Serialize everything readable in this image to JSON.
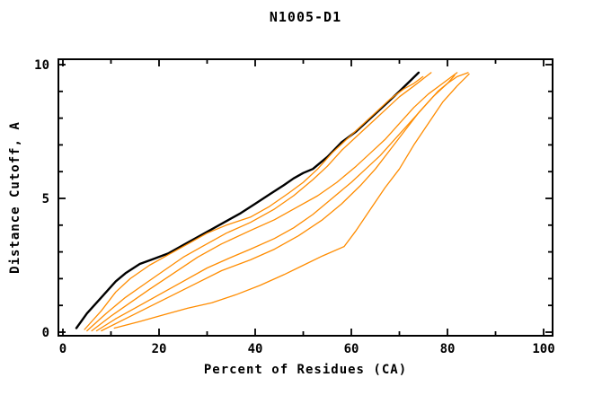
{
  "figure": {
    "background": "#ffffff",
    "frame_color": "#000000",
    "target_color": "#000000",
    "model_color": "#ff8c00"
  },
  "chart_data": {
    "type": "line",
    "title": "N1005-D1",
    "xlabel": "Percent of Residues (CA)",
    "ylabel": "Distance Cutoff, A",
    "xlim": [
      0,
      100
    ],
    "ylim": [
      0,
      10
    ],
    "grid": false,
    "legend": "none",
    "x_major_ticks": [
      0,
      20,
      40,
      60,
      80,
      100
    ],
    "x_minor_ticks": [
      10,
      30,
      50,
      70,
      90
    ],
    "x_tick_labels": [
      "0",
      "20",
      "40",
      "60",
      "80",
      "100"
    ],
    "y_major_ticks": [
      0,
      5,
      10
    ],
    "y_minor_ticks": [
      1,
      2,
      3,
      4,
      6,
      7,
      8,
      9
    ],
    "y_tick_labels": [
      "0",
      "5",
      "10"
    ],
    "series": [
      {
        "name": "target-curve",
        "color": "#000000",
        "width": 2.4,
        "points": [
          [
            2.8,
            0.15
          ],
          [
            5,
            0.7
          ],
          [
            8,
            1.3
          ],
          [
            11,
            1.9
          ],
          [
            13,
            2.2
          ],
          [
            16,
            2.55
          ],
          [
            19,
            2.75
          ],
          [
            22,
            2.95
          ],
          [
            25,
            3.25
          ],
          [
            28,
            3.55
          ],
          [
            31,
            3.85
          ],
          [
            34,
            4.15
          ],
          [
            37,
            4.45
          ],
          [
            40,
            4.8
          ],
          [
            43,
            5.15
          ],
          [
            46,
            5.5
          ],
          [
            48,
            5.75
          ],
          [
            50,
            5.95
          ],
          [
            52,
            6.1
          ],
          [
            55,
            6.55
          ],
          [
            58,
            7.1
          ],
          [
            61,
            7.5
          ],
          [
            64,
            8.0
          ],
          [
            67,
            8.5
          ],
          [
            70,
            9.0
          ],
          [
            72,
            9.35
          ],
          [
            74,
            9.7
          ]
        ]
      },
      {
        "name": "model-curve-1",
        "color": "#ff8c00",
        "width": 1.3,
        "points": [
          [
            4.5,
            0.1
          ],
          [
            8,
            0.8
          ],
          [
            11,
            1.5
          ],
          [
            14,
            2.0
          ],
          [
            18,
            2.5
          ],
          [
            22,
            2.9
          ],
          [
            26,
            3.3
          ],
          [
            30,
            3.7
          ],
          [
            34,
            4.0
          ],
          [
            39,
            4.3
          ],
          [
            43,
            4.7
          ],
          [
            47,
            5.2
          ],
          [
            50,
            5.6
          ],
          [
            53,
            6.1
          ],
          [
            56,
            6.7
          ],
          [
            59,
            7.2
          ],
          [
            62,
            7.7
          ],
          [
            65,
            8.2
          ],
          [
            68,
            8.7
          ],
          [
            71,
            9.1
          ],
          [
            73,
            9.3
          ],
          [
            74.9,
            9.55
          ]
        ]
      },
      {
        "name": "model-curve-2",
        "color": "#ff8c00",
        "width": 1.3,
        "points": [
          [
            5,
            0.05
          ],
          [
            9,
            0.7
          ],
          [
            13,
            1.3
          ],
          [
            17,
            1.8
          ],
          [
            21,
            2.3
          ],
          [
            25,
            2.8
          ],
          [
            29,
            3.2
          ],
          [
            34,
            3.7
          ],
          [
            39,
            4.1
          ],
          [
            44,
            4.6
          ],
          [
            48,
            5.1
          ],
          [
            52,
            5.7
          ],
          [
            55,
            6.2
          ],
          [
            58,
            6.8
          ],
          [
            61,
            7.3
          ],
          [
            64,
            7.8
          ],
          [
            67,
            8.3
          ],
          [
            70,
            8.8
          ],
          [
            73,
            9.2
          ],
          [
            76.6,
            9.7
          ]
        ]
      },
      {
        "name": "model-curve-3",
        "color": "#ff8c00",
        "width": 1.3,
        "points": [
          [
            6,
            0.05
          ],
          [
            10,
            0.6
          ],
          [
            14,
            1.1
          ],
          [
            18,
            1.6
          ],
          [
            23,
            2.2
          ],
          [
            28,
            2.8
          ],
          [
            33,
            3.3
          ],
          [
            39,
            3.8
          ],
          [
            44,
            4.2
          ],
          [
            49,
            4.7
          ],
          [
            53,
            5.1
          ],
          [
            57,
            5.6
          ],
          [
            61,
            6.2
          ],
          [
            64,
            6.7
          ],
          [
            67,
            7.2
          ],
          [
            70,
            7.8
          ],
          [
            73,
            8.4
          ],
          [
            76,
            8.9
          ],
          [
            79,
            9.3
          ],
          [
            82,
            9.7
          ]
        ]
      },
      {
        "name": "model-curve-4",
        "color": "#ff8c00",
        "width": 1.3,
        "points": [
          [
            7,
            0.05
          ],
          [
            11,
            0.5
          ],
          [
            15,
            0.9
          ],
          [
            20,
            1.4
          ],
          [
            25,
            1.9
          ],
          [
            30,
            2.4
          ],
          [
            35,
            2.8
          ],
          [
            39,
            3.1
          ],
          [
            44,
            3.5
          ],
          [
            48,
            3.9
          ],
          [
            52,
            4.4
          ],
          [
            56,
            5.0
          ],
          [
            60,
            5.6
          ],
          [
            63,
            6.1
          ],
          [
            66,
            6.6
          ],
          [
            69,
            7.2
          ],
          [
            72,
            7.8
          ],
          [
            75,
            8.4
          ],
          [
            78,
            9.0
          ],
          [
            80,
            9.3
          ],
          [
            81.5,
            9.6
          ]
        ]
      },
      {
        "name": "model-curve-5",
        "color": "#ff8c00",
        "width": 1.3,
        "points": [
          [
            8,
            0.05
          ],
          [
            13,
            0.5
          ],
          [
            18,
            0.95
          ],
          [
            23,
            1.4
          ],
          [
            28,
            1.85
          ],
          [
            33,
            2.3
          ],
          [
            39,
            2.7
          ],
          [
            44,
            3.1
          ],
          [
            49,
            3.6
          ],
          [
            54,
            4.2
          ],
          [
            58,
            4.8
          ],
          [
            62,
            5.5
          ],
          [
            65,
            6.1
          ],
          [
            68,
            6.8
          ],
          [
            71,
            7.5
          ],
          [
            74,
            8.2
          ],
          [
            77,
            8.8
          ],
          [
            80,
            9.3
          ],
          [
            82,
            9.55
          ],
          [
            84.3,
            9.7
          ]
        ]
      },
      {
        "name": "model-curve-6",
        "color": "#ff8c00",
        "width": 1.3,
        "points": [
          [
            10.7,
            0.15
          ],
          [
            16,
            0.4
          ],
          [
            21,
            0.65
          ],
          [
            26,
            0.9
          ],
          [
            31,
            1.1
          ],
          [
            36,
            1.4
          ],
          [
            41,
            1.75
          ],
          [
            46,
            2.15
          ],
          [
            50,
            2.5
          ],
          [
            54,
            2.85
          ],
          [
            58.5,
            3.2
          ],
          [
            61,
            3.8
          ],
          [
            64,
            4.6
          ],
          [
            67,
            5.4
          ],
          [
            70,
            6.1
          ],
          [
            73,
            7.0
          ],
          [
            76,
            7.8
          ],
          [
            79,
            8.6
          ],
          [
            82,
            9.2
          ],
          [
            84.5,
            9.65
          ]
        ]
      }
    ]
  }
}
